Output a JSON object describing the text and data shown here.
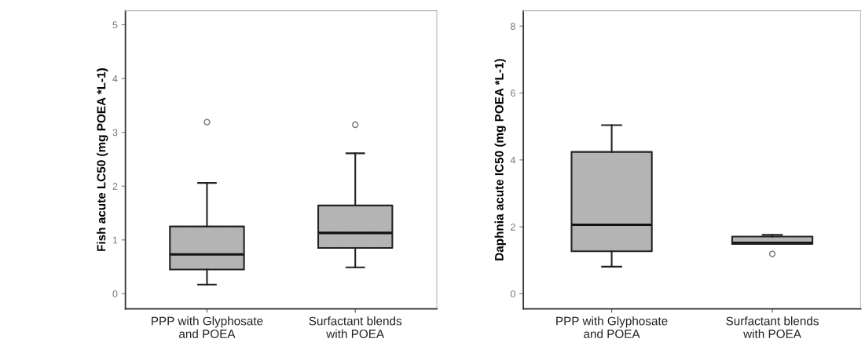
{
  "chart_data": [
    {
      "type": "box",
      "ylabel": "Fish acute LC50 (mg POEA *L-1)",
      "categories": [
        "PPP with Glyphosate\nand POEA",
        "Surfactant blends\nwith POEA"
      ],
      "color": "#b4b4b4",
      "ylim": [
        -0.28,
        5.26
      ],
      "yticks": [
        0,
        1,
        2,
        3,
        4,
        5
      ],
      "grid": false,
      "boxes": [
        {
          "low": 0.17,
          "q1": 0.45,
          "median": 0.73,
          "q3": 1.25,
          "high": 2.06,
          "outliers": [
            3.19
          ]
        },
        {
          "low": 0.49,
          "q1": 0.85,
          "median": 1.13,
          "q3": 1.64,
          "high": 2.61,
          "outliers": [
            3.14
          ]
        }
      ]
    },
    {
      "type": "box",
      "ylabel": "Daphnia acute IC50 (mg POEA *L-1)",
      "categories": [
        "PPP with Glyphosate\nand POEA",
        "Surfactant blends\nwith POEA"
      ],
      "color": "#b4b4b4",
      "ylim": [
        -0.45,
        8.46
      ],
      "yticks": [
        0,
        2,
        4,
        6,
        8
      ],
      "grid": false,
      "boxes": [
        {
          "low": 0.81,
          "q1": 1.27,
          "median": 2.06,
          "q3": 4.24,
          "high": 5.04
        },
        {
          "low": 1.49,
          "q1": 1.49,
          "median": 1.52,
          "q3": 1.71,
          "high": 1.76,
          "outliers": [
            1.19
          ]
        }
      ]
    }
  ]
}
